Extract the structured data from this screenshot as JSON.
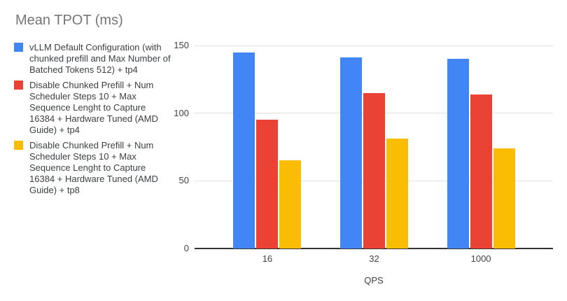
{
  "chart_data": {
    "type": "bar",
    "title": "Mean TPOT (ms)",
    "xlabel": "QPS",
    "ylabel": "",
    "ylim": [
      0,
      150
    ],
    "yticks": [
      0,
      50,
      100,
      150
    ],
    "grid": true,
    "legend_position": "left",
    "categories": [
      "16",
      "32",
      "1000"
    ],
    "series": [
      {
        "name": "vLLM Default Configuration (with chunked prefill and Max Number of Batched Tokens 512) + tp4",
        "color": "#4285F4",
        "values": [
          145,
          141,
          140
        ]
      },
      {
        "name": "Disable Chunked Prefill + Num Scheduler Steps 10 + Max Sequence Lenght to Capture 16384 + Hardware Tuned (AMD Guide) + tp4",
        "color": "#EA4335",
        "values": [
          95,
          115,
          114
        ]
      },
      {
        "name": "Disable Chunked Prefill + Num Scheduler Steps 10 + Max Sequence Lenght to Capture 16384 + Hardware Tuned (AMD Guide) + tp8",
        "color": "#FBBC04",
        "values": [
          65,
          81,
          74
        ]
      }
    ],
    "colors": {
      "title_text": "#757575",
      "legend_text": "#3c4043",
      "axis_text": "#424242",
      "gridline": "#e0e0e0",
      "axis_line": "#333333",
      "background": "#ffffff"
    }
  }
}
